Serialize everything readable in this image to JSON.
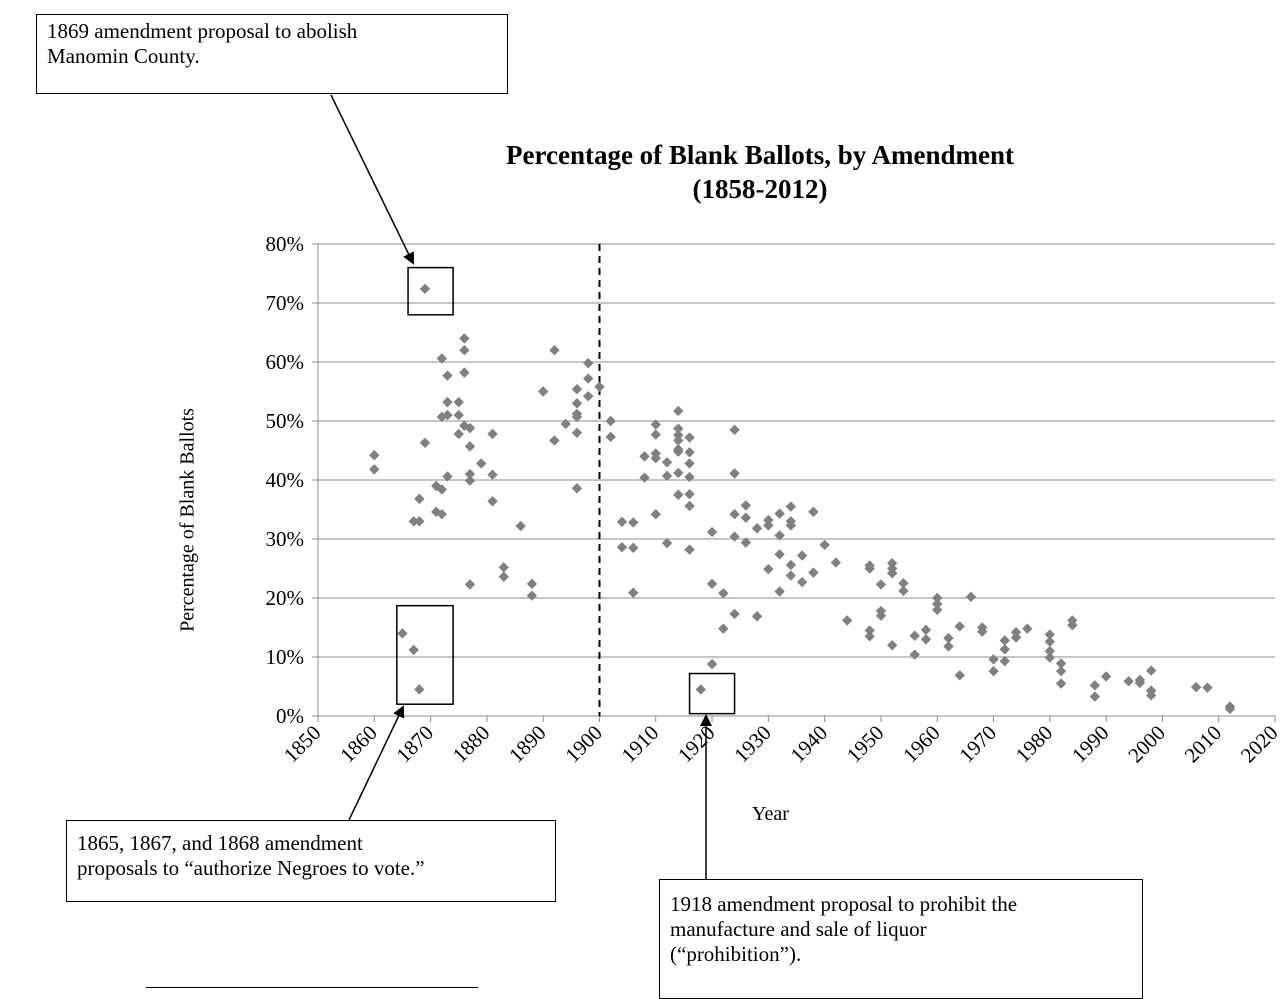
{
  "callouts": {
    "manomin": [
      "1869 amendment proposal to abolish",
      "Manomin County."
    ],
    "negroes": [
      "1865, 1867, and 1868 amendment",
      "proposals to “authorize Negroes to vote.”"
    ],
    "prohibition": [
      "1918 amendment proposal to prohibit the",
      "manufacture and sale of liquor",
      "(“prohibition”)."
    ]
  },
  "chart_data": {
    "type": "scatter",
    "title": [
      "Percentage of Blank Ballots, by Amendment",
      "(1858-2012)"
    ],
    "xlabel": "Year",
    "ylabel": "Percentage of Blank Ballots",
    "xlim": [
      1850,
      2020
    ],
    "ylim": [
      0,
      80
    ],
    "x_ticks": [
      "1850",
      "1860",
      "1870",
      "1880",
      "1890",
      "1900",
      "1910",
      "1920",
      "1930",
      "1940",
      "1950",
      "1960",
      "1970",
      "1980",
      "1990",
      "2000",
      "2010",
      "2020"
    ],
    "y_ticks": [
      "0%",
      "10%",
      "20%",
      "30%",
      "40%",
      "50%",
      "60%",
      "70%",
      "80%"
    ],
    "grid": "horizontal",
    "reference_line_x": 1900,
    "marker_color": "#808080",
    "points": [
      [
        1860,
        44.2
      ],
      [
        1860,
        41.8
      ],
      [
        1865,
        14
      ],
      [
        1867,
        33
      ],
      [
        1867,
        11.2
      ],
      [
        1868,
        36.8
      ],
      [
        1868,
        33
      ],
      [
        1868,
        4.5
      ],
      [
        1869,
        72.4
      ],
      [
        1869,
        46.3
      ],
      [
        1871,
        39
      ],
      [
        1871,
        34.6
      ],
      [
        1872,
        60.6
      ],
      [
        1872,
        50.7
      ],
      [
        1872,
        38.4
      ],
      [
        1872,
        34.2
      ],
      [
        1873,
        57.7
      ],
      [
        1873,
        53.2
      ],
      [
        1873,
        51
      ],
      [
        1873,
        40.6
      ],
      [
        1875,
        53.2
      ],
      [
        1875,
        51
      ],
      [
        1875,
        47.8
      ],
      [
        1876,
        64
      ],
      [
        1876,
        62
      ],
      [
        1876,
        58.2
      ],
      [
        1876,
        49.2
      ],
      [
        1877,
        48.8
      ],
      [
        1877,
        45.7
      ],
      [
        1877,
        41
      ],
      [
        1877,
        39.9
      ],
      [
        1877,
        22.3
      ],
      [
        1879,
        42.8
      ],
      [
        1881,
        47.8
      ],
      [
        1881,
        40.9
      ],
      [
        1881,
        36.4
      ],
      [
        1883,
        25.2
      ],
      [
        1883,
        23.6
      ],
      [
        1886,
        32.2
      ],
      [
        1888,
        22.4
      ],
      [
        1888,
        20.4
      ],
      [
        1890,
        55
      ],
      [
        1892,
        62
      ],
      [
        1892,
        46.7
      ],
      [
        1894,
        49.5
      ],
      [
        1896,
        55.4
      ],
      [
        1896,
        53
      ],
      [
        1896,
        51.2
      ],
      [
        1896,
        50.7
      ],
      [
        1896,
        48
      ],
      [
        1896,
        38.6
      ],
      [
        1898,
        59.8
      ],
      [
        1898,
        57.2
      ],
      [
        1898,
        54.2
      ],
      [
        1900,
        55.8
      ],
      [
        1902,
        50
      ],
      [
        1902,
        47.3
      ],
      [
        1904,
        32.9
      ],
      [
        1904,
        28.6
      ],
      [
        1906,
        32.8
      ],
      [
        1906,
        28.5
      ],
      [
        1906,
        20.9
      ],
      [
        1908,
        44
      ],
      [
        1908,
        40.4
      ],
      [
        1910,
        49.4
      ],
      [
        1910,
        47.7
      ],
      [
        1910,
        44.5
      ],
      [
        1910,
        43.7
      ],
      [
        1910,
        34.2
      ],
      [
        1912,
        43
      ],
      [
        1912,
        40.7
      ],
      [
        1912,
        29.3
      ],
      [
        1914,
        51.7
      ],
      [
        1914,
        48.7
      ],
      [
        1914,
        47.6
      ],
      [
        1914,
        46.7
      ],
      [
        1914,
        45.2
      ],
      [
        1914,
        44.8
      ],
      [
        1914,
        41.2
      ],
      [
        1914,
        37.5
      ],
      [
        1916,
        47.2
      ],
      [
        1916,
        44.7
      ],
      [
        1916,
        42.8
      ],
      [
        1916,
        40.5
      ],
      [
        1916,
        37.6
      ],
      [
        1916,
        35.6
      ],
      [
        1916,
        28.2
      ],
      [
        1918,
        4.5
      ],
      [
        1920,
        31.2
      ],
      [
        1920,
        22.4
      ],
      [
        1920,
        8.8
      ],
      [
        1922,
        20.8
      ],
      [
        1922,
        14.8
      ],
      [
        1924,
        48.5
      ],
      [
        1924,
        41.1
      ],
      [
        1924,
        34.2
      ],
      [
        1924,
        30.4
      ],
      [
        1924,
        17.3
      ],
      [
        1926,
        35.7
      ],
      [
        1926,
        33.6
      ],
      [
        1926,
        29.4
      ],
      [
        1928,
        31.8
      ],
      [
        1928,
        16.9
      ],
      [
        1930,
        33.2
      ],
      [
        1930,
        32.3
      ],
      [
        1930,
        24.9
      ],
      [
        1932,
        34.3
      ],
      [
        1932,
        30.6
      ],
      [
        1932,
        27.4
      ],
      [
        1932,
        21.1
      ],
      [
        1934,
        35.5
      ],
      [
        1934,
        33
      ],
      [
        1934,
        32.3
      ],
      [
        1934,
        25.6
      ],
      [
        1934,
        23.8
      ],
      [
        1936,
        27.2
      ],
      [
        1936,
        22.7
      ],
      [
        1938,
        34.6
      ],
      [
        1938,
        24.3
      ],
      [
        1940,
        29
      ],
      [
        1942,
        26
      ],
      [
        1944,
        16.2
      ],
      [
        1948,
        25.5
      ],
      [
        1948,
        25
      ],
      [
        1948,
        14.5
      ],
      [
        1948,
        13.5
      ],
      [
        1950,
        22.3
      ],
      [
        1950,
        17.8
      ],
      [
        1950,
        17
      ],
      [
        1952,
        25.9
      ],
      [
        1952,
        25
      ],
      [
        1952,
        24.2
      ],
      [
        1952,
        12
      ],
      [
        1954,
        22.5
      ],
      [
        1954,
        21.2
      ],
      [
        1956,
        13.6
      ],
      [
        1956,
        10.4
      ],
      [
        1958,
        14.6
      ],
      [
        1958,
        13
      ],
      [
        1960,
        20
      ],
      [
        1960,
        19
      ],
      [
        1960,
        18
      ],
      [
        1962,
        13.2
      ],
      [
        1962,
        11.8
      ],
      [
        1964,
        15.2
      ],
      [
        1964,
        6.9
      ],
      [
        1966,
        20.2
      ],
      [
        1968,
        15
      ],
      [
        1968,
        14.3
      ],
      [
        1970,
        9.6
      ],
      [
        1970,
        7.6
      ],
      [
        1972,
        12.8
      ],
      [
        1972,
        11.3
      ],
      [
        1972,
        9.3
      ],
      [
        1974,
        14.2
      ],
      [
        1974,
        13.3
      ],
      [
        1976,
        14.8
      ],
      [
        1980,
        13.8
      ],
      [
        1980,
        12.6
      ],
      [
        1980,
        11
      ],
      [
        1980,
        9.9
      ],
      [
        1982,
        8.9
      ],
      [
        1982,
        7.6
      ],
      [
        1982,
        5.5
      ],
      [
        1984,
        16.2
      ],
      [
        1984,
        15.4
      ],
      [
        1988,
        5.2
      ],
      [
        1988,
        3.3
      ],
      [
        1990,
        6.7
      ],
      [
        1994,
        5.9
      ],
      [
        1996,
        6.1
      ],
      [
        1996,
        5.6
      ],
      [
        1998,
        7.7
      ],
      [
        1998,
        4.3
      ],
      [
        1998,
        3.5
      ],
      [
        2006,
        4.9
      ],
      [
        2008,
        4.8
      ],
      [
        2012,
        1.6
      ],
      [
        2012,
        1.2
      ]
    ],
    "highlight_boxes": [
      {
        "x": [
          1866,
          1874
        ],
        "y": [
          68,
          76
        ]
      },
      {
        "x": [
          1864,
          1874
        ],
        "y": [
          2,
          18.7
        ]
      },
      {
        "x": [
          1916,
          1924
        ],
        "y": [
          0.4,
          7.2
        ]
      }
    ]
  }
}
